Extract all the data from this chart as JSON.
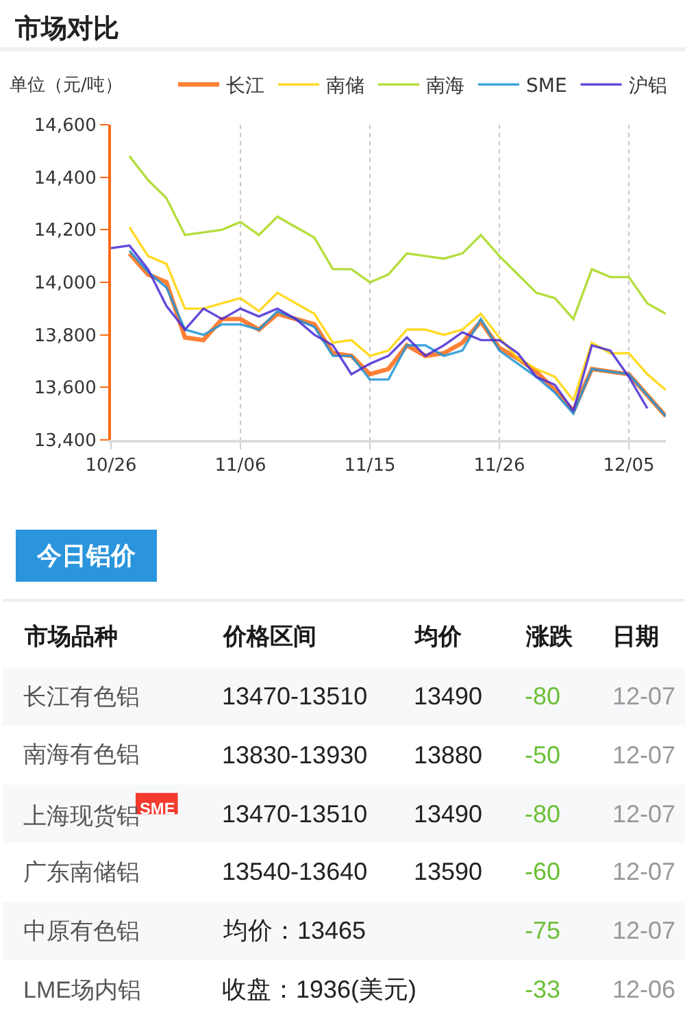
{
  "chart_data": [
    {
      "type": "line",
      "title": "市场对比",
      "ylabel": "单位（元/吨）",
      "categories": [
        "10/26",
        null,
        null,
        null,
        null,
        null,
        null,
        "11/06",
        null,
        null,
        null,
        null,
        null,
        null,
        "11/15",
        null,
        null,
        null,
        null,
        null,
        null,
        "11/26",
        null,
        null,
        null,
        null,
        null,
        null,
        "12/05",
        null,
        null
      ],
      "series": [
        {
          "name": "长江",
          "color": "#ff6a13",
          "values": [
            null,
            14110,
            14030,
            14000,
            13790,
            13780,
            13860,
            13860,
            13820,
            13880,
            13860,
            13840,
            13730,
            13720,
            13650,
            13670,
            13760,
            13720,
            13730,
            13770,
            13850,
            13750,
            13710,
            13660,
            13590,
            13510,
            13670,
            13660,
            13650,
            13570,
            13490
          ]
        },
        {
          "name": "南储",
          "color": "#ffd400",
          "values": [
            null,
            14210,
            14100,
            14070,
            13900,
            13900,
            13920,
            13940,
            13890,
            13960,
            13920,
            13880,
            13770,
            13780,
            13720,
            13740,
            13820,
            13820,
            13800,
            13820,
            13880,
            13790,
            13710,
            13670,
            13640,
            13550,
            13770,
            13730,
            13730,
            13650,
            13590
          ]
        },
        {
          "name": "南海",
          "color": "#a8d81c",
          "values": [
            null,
            14480,
            14390,
            14320,
            14180,
            14190,
            14200,
            14230,
            14180,
            14250,
            14210,
            14170,
            14050,
            14050,
            14000,
            14030,
            14110,
            14100,
            14090,
            14110,
            14180,
            14100,
            14030,
            13960,
            13940,
            13860,
            14050,
            14020,
            14020,
            13920,
            13880
          ]
        },
        {
          "name": "SME",
          "color": "#1e94d8",
          "values": [
            null,
            14120,
            14040,
            13980,
            13820,
            13800,
            13840,
            13840,
            13820,
            13890,
            13860,
            13830,
            13720,
            13720,
            13630,
            13630,
            13760,
            13760,
            13720,
            13740,
            13860,
            13740,
            13690,
            13640,
            13580,
            13500,
            13670,
            13660,
            13650,
            13570,
            13490
          ]
        },
        {
          "name": "沪铝",
          "color": "#4b2bd6",
          "values": [
            14130,
            14140,
            14050,
            13910,
            13820,
            13900,
            13860,
            13900,
            13870,
            13900,
            13860,
            13800,
            13760,
            13650,
            13690,
            13720,
            13790,
            13720,
            13760,
            13810,
            13780,
            13780,
            13730,
            13640,
            13610,
            13510,
            13760,
            13740,
            13640,
            13520,
            null
          ]
        }
      ],
      "ylim": [
        13400,
        14600
      ],
      "yticks": [
        {
          "value": 13400,
          "label": "13,400"
        },
        {
          "value": 13600,
          "label": "13,600"
        },
        {
          "value": 13800,
          "label": "13,800"
        },
        {
          "value": 14000,
          "label": "14,000"
        },
        {
          "value": 14200,
          "label": "14,200"
        },
        {
          "value": 14400,
          "label": "14,400"
        },
        {
          "value": 14600,
          "label": "14,600"
        }
      ],
      "grid": "x",
      "legend": "top"
    },
    {
      "type": "other",
      "title": "今日铝价",
      "categories": [
        "市场品种",
        "价格区间",
        "均价",
        "涨跌",
        "日期"
      ],
      "y_categories": [
        "长江有色铝",
        "南海有色铝",
        "上海现货铝$^{SME}$",
        "广东南储铝",
        "中原有色铝",
        "LME场内铝"
      ],
      "cell_labels": [
        [
          "13470-13510",
          "13490",
          "-80",
          "12-07"
        ],
        [
          "13830-13930",
          "13880",
          "-50",
          "12-07"
        ],
        [
          "13470-13510",
          "13490",
          "-80",
          "12-07"
        ],
        [
          "13540-13640",
          "13590",
          "-60",
          "12-07"
        ],
        [
          "均价：13465",
          null,
          "-75",
          "12-07"
        ],
        [
          "收盘：1936(美元)",
          null,
          "-33",
          "12-06"
        ]
      ]
    }
  ]
}
